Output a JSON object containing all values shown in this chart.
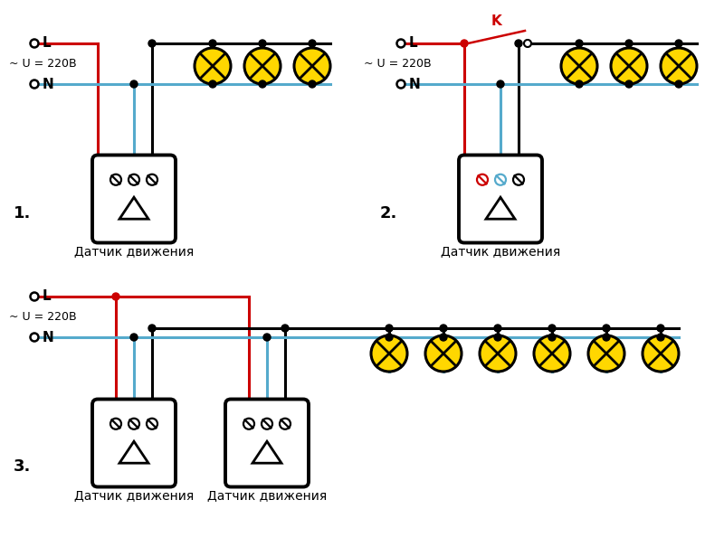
{
  "bg_color": "#ffffff",
  "black": "#000000",
  "red": "#cc0000",
  "blue": "#55aacc",
  "yellow": "#FFD700",
  "label_L": "L",
  "label_N": "N",
  "label_voltage": "~ U = 220В",
  "label_sensor": "Датчик движения",
  "label_K": "K",
  "label_1": "1.",
  "label_2": "2.",
  "label_3": "3.",
  "lw_main": 2.2,
  "lw_border": 2.5
}
